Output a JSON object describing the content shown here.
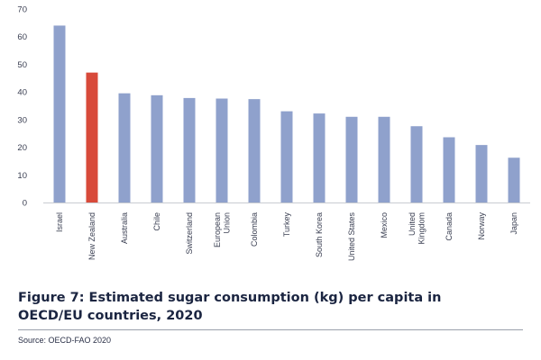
{
  "chart_data": {
    "type": "bar",
    "categories": [
      "Israel",
      "New Zealand",
      "Australia",
      "Chile",
      "Switzerland",
      "European Union",
      "Colombia",
      "Turkey",
      "South Korea",
      "United States",
      "Mexico",
      "United Kingdom",
      "Canada",
      "Norway",
      "Japan"
    ],
    "category_lines": [
      [
        "Israel"
      ],
      [
        "New Zealand"
      ],
      [
        "Australia"
      ],
      [
        "Chile"
      ],
      [
        "Switzerland"
      ],
      [
        "European",
        "Union"
      ],
      [
        "Colombia"
      ],
      [
        "Turkey"
      ],
      [
        "South Korea"
      ],
      [
        "United States"
      ],
      [
        "Mexico"
      ],
      [
        "United",
        "Kingdom"
      ],
      [
        "Canada"
      ],
      [
        "Norway"
      ],
      [
        "Japan"
      ]
    ],
    "values": [
      64,
      47,
      39.5,
      38.8,
      37.8,
      37.6,
      37.4,
      33,
      32.2,
      31,
      31,
      27.6,
      23.6,
      20.8,
      16.2
    ],
    "highlight_category": "New Zealand",
    "colors": {
      "bar": "#8fa1cc",
      "highlight": "#d84a3a",
      "axis": "#c9cbd1",
      "text": "#3a3f52"
    },
    "ylim": [
      0,
      70
    ],
    "yticks": [
      0,
      10,
      20,
      30,
      40,
      50,
      60,
      70
    ],
    "grid": false,
    "xlabel": "",
    "ylabel": ""
  },
  "caption": "Figure 7: Estimated sugar consumption (kg) per capita in OECD/EU countries, 2020",
  "source": "Source: OECD-FAO 2020"
}
